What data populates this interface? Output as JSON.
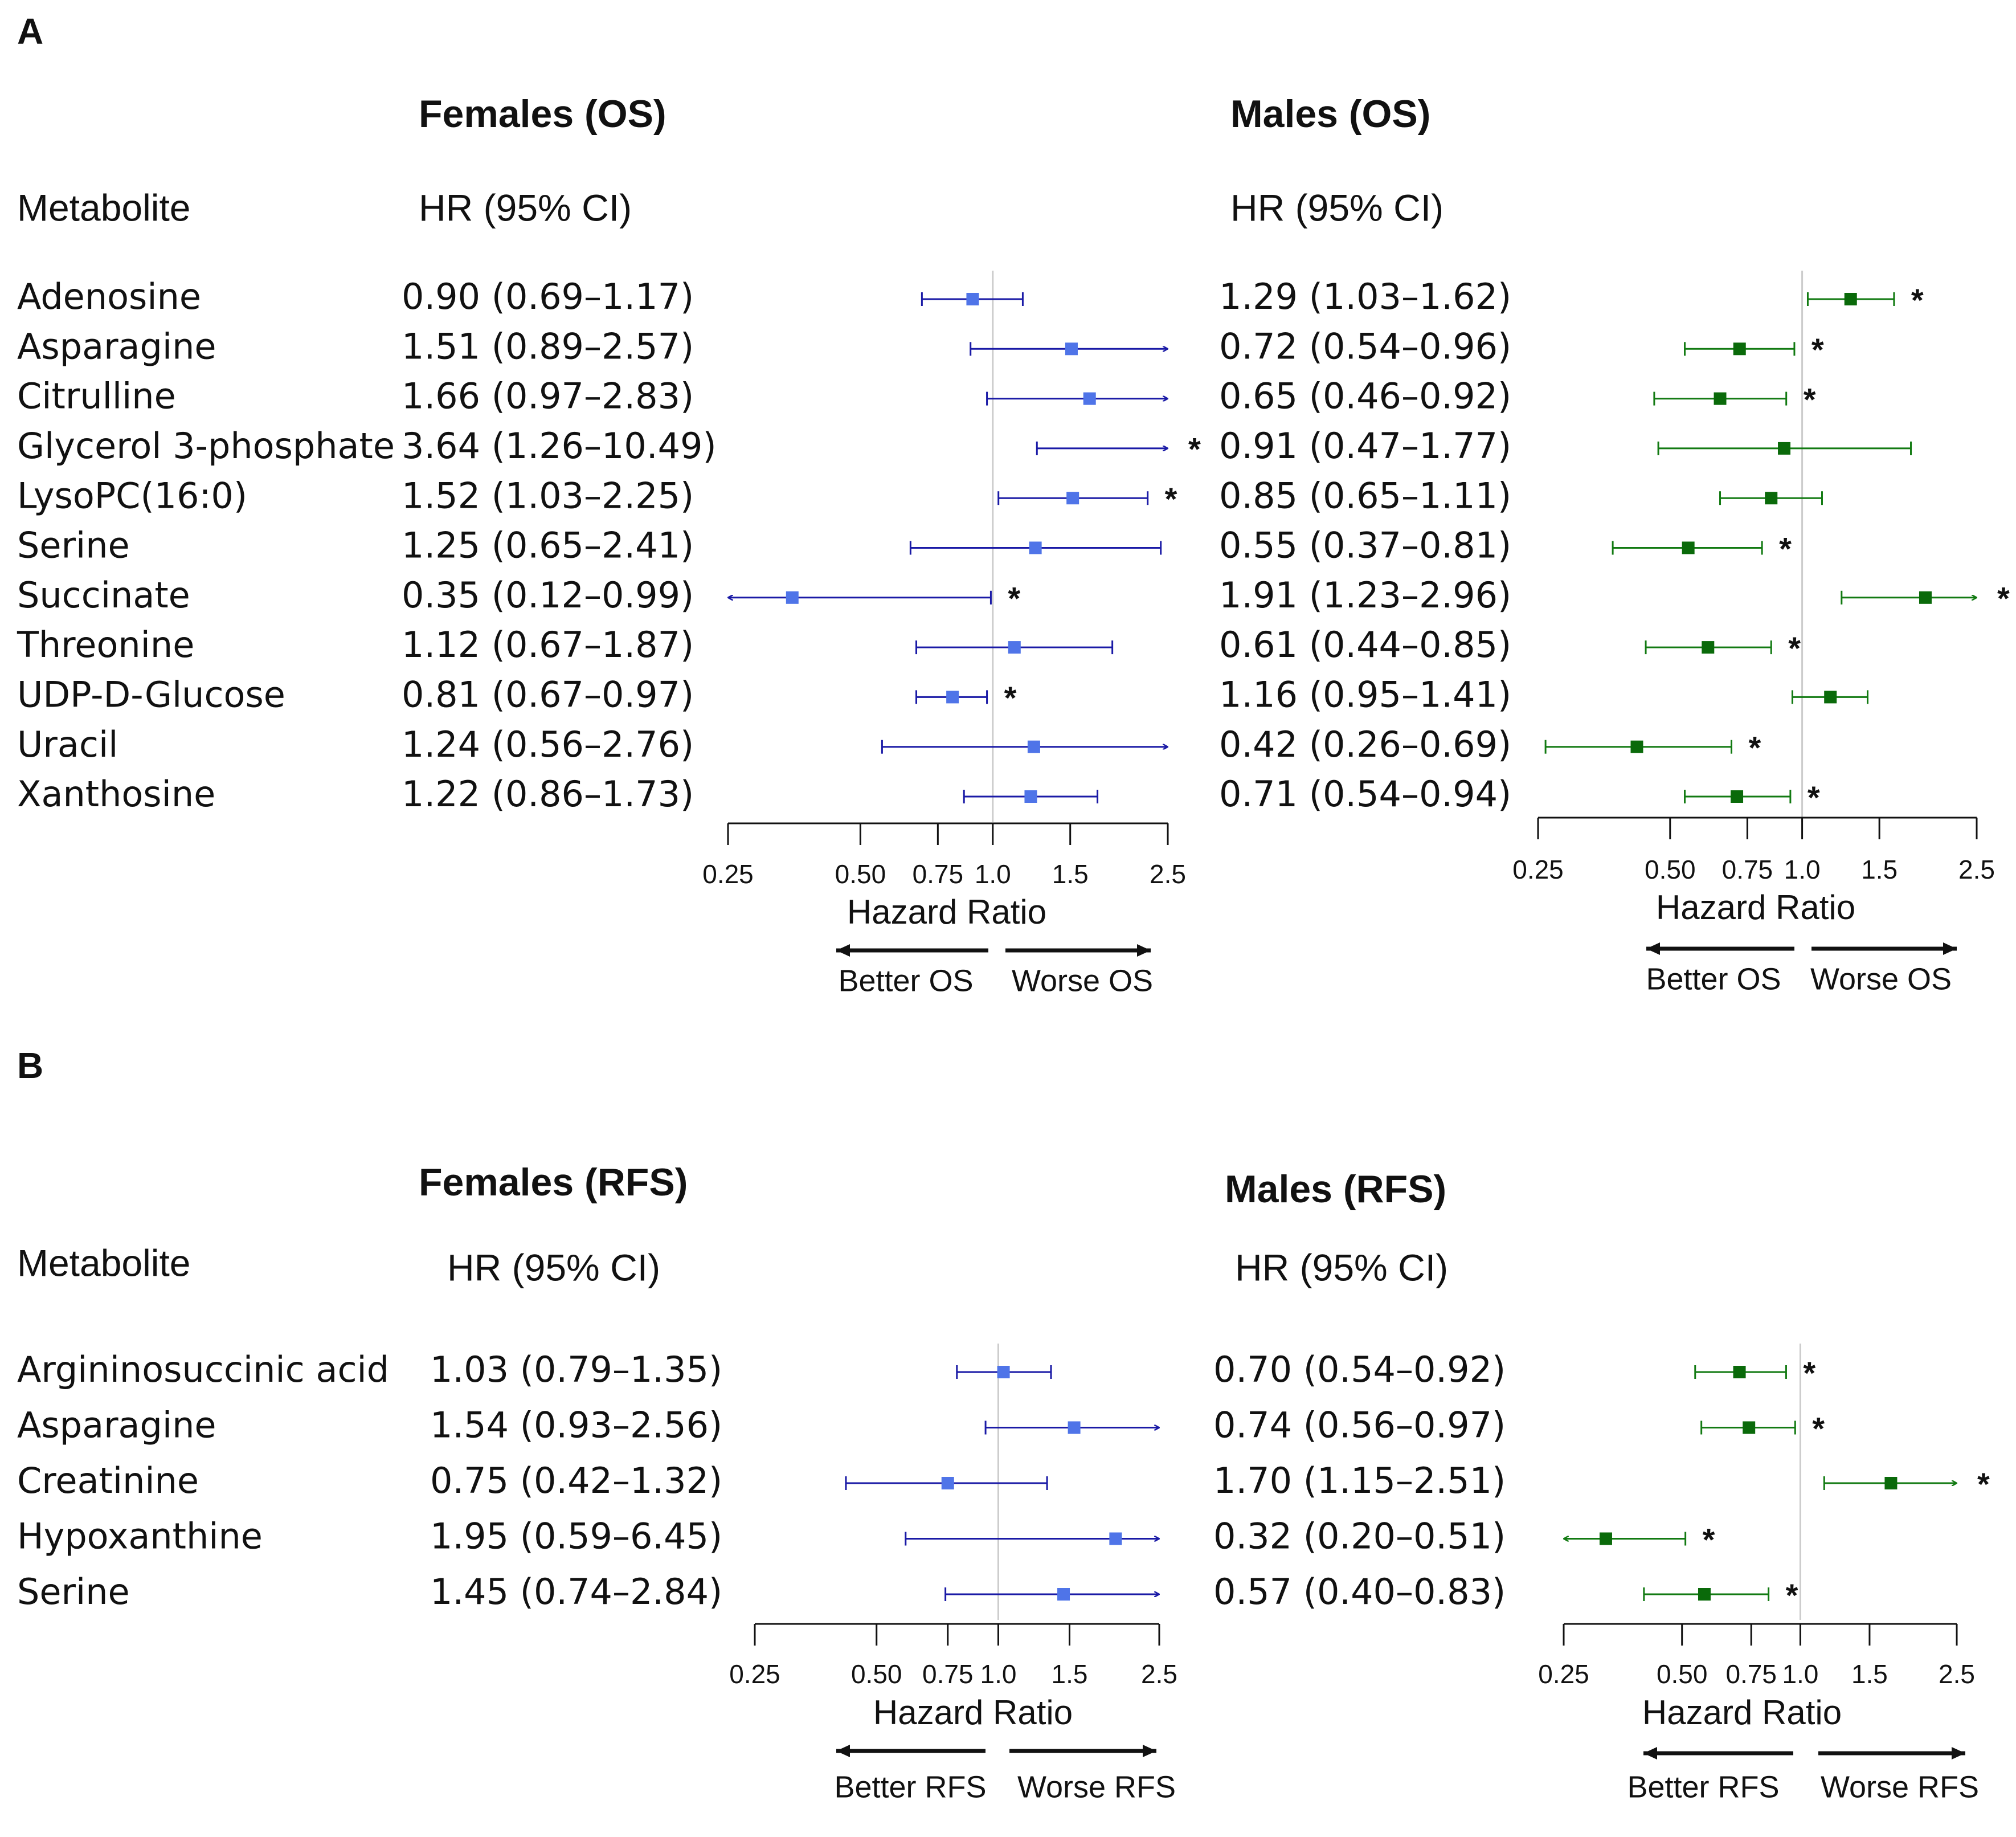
{
  "colors": {
    "female": "#1a1aa6",
    "female_point": "#4f74e8",
    "male": "#127a12",
    "male_point": "#0a6a0a",
    "ref_line": "#cccccc",
    "text": "#111111"
  },
  "panels": [
    {
      "label": "A",
      "metabolite_header": "Metabolite",
      "charts": [
        {
          "key": "female_os",
          "title": "Females (OS)",
          "hr_header": "HR (95% CI)",
          "axis_label": "Hazard Ratio",
          "better_label": "Better OS",
          "worse_label": "Worse OS",
          "ticks": [
            "0.25",
            "0.50",
            "0.75",
            "1.0",
            "1.5",
            "2.5"
          ],
          "rows": [
            {
              "name": "Adenosine",
              "hr_text": "0.90 (0.69–1.17)",
              "sig": ""
            },
            {
              "name": "Asparagine",
              "hr_text": "1.51 (0.89–2.57)",
              "sig": ""
            },
            {
              "name": "Citrulline",
              "hr_text": "1.66 (0.97–2.83)",
              "sig": ""
            },
            {
              "name": "Glycerol 3-phosphate",
              "hr_text": "3.64 (1.26–10.49)",
              "sig": "*"
            },
            {
              "name": "LysoPC(16:0)",
              "hr_text": "1.52 (1.03–2.25)",
              "sig": "*"
            },
            {
              "name": "Serine",
              "hr_text": "1.25 (0.65–2.41)",
              "sig": ""
            },
            {
              "name": "Succinate",
              "hr_text": "0.35 (0.12–0.99)",
              "sig": "*"
            },
            {
              "name": "Threonine",
              "hr_text": "1.12 (0.67–1.87)",
              "sig": ""
            },
            {
              "name": "UDP-D-Glucose",
              "hr_text": "0.81 (0.67–0.97)",
              "sig": "*"
            },
            {
              "name": "Uracil",
              "hr_text": "1.24 (0.56–2.76)",
              "sig": ""
            },
            {
              "name": "Xanthosine",
              "hr_text": "1.22 (0.86–1.73)",
              "sig": ""
            }
          ]
        },
        {
          "key": "male_os",
          "title": "Males (OS)",
          "hr_header": "HR (95% CI)",
          "axis_label": "Hazard Ratio",
          "better_label": "Better OS",
          "worse_label": "Worse OS",
          "ticks": [
            "0.25",
            "0.50",
            "0.75",
            "1.0",
            "1.5",
            "2.5"
          ],
          "rows": [
            {
              "name": "Adenosine",
              "hr_text": "1.29 (1.03–1.62)",
              "sig": "*"
            },
            {
              "name": "Asparagine",
              "hr_text": "0.72 (0.54–0.96)",
              "sig": "*"
            },
            {
              "name": "Citrulline",
              "hr_text": "0.65 (0.46–0.92)",
              "sig": "*"
            },
            {
              "name": "Glycerol 3-phosphate",
              "hr_text": "0.91 (0.47–1.77)",
              "sig": ""
            },
            {
              "name": "LysoPC(16:0)",
              "hr_text": "0.85 (0.65–1.11)",
              "sig": ""
            },
            {
              "name": "Serine",
              "hr_text": "0.55 (0.37–0.81)",
              "sig": "*"
            },
            {
              "name": "Succinate",
              "hr_text": "1.91 (1.23–2.96)",
              "sig": "*"
            },
            {
              "name": "Threonine",
              "hr_text": "0.61 (0.44–0.85)",
              "sig": "*"
            },
            {
              "name": "UDP-D-Glucose",
              "hr_text": "1.16 (0.95–1.41)",
              "sig": ""
            },
            {
              "name": "Uracil",
              "hr_text": "0.42 (0.26–0.69)",
              "sig": "*"
            },
            {
              "name": "Xanthosine",
              "hr_text": "0.71 (0.54–0.94)",
              "sig": "*"
            }
          ]
        }
      ]
    },
    {
      "label": "B",
      "metabolite_header": "Metabolite",
      "charts": [
        {
          "key": "female_rfs",
          "title": "Females (RFS)",
          "hr_header": "HR (95% CI)",
          "axis_label": "Hazard Ratio",
          "better_label": "Better RFS",
          "worse_label": "Worse RFS",
          "ticks": [
            "0.25",
            "0.50",
            "0.75",
            "1.0",
            "1.5",
            "2.5"
          ],
          "rows": [
            {
              "name": "Argininosuccinic acid",
              "hr_text": "1.03 (0.79–1.35)",
              "sig": ""
            },
            {
              "name": "Asparagine",
              "hr_text": "1.54 (0.93–2.56)",
              "sig": ""
            },
            {
              "name": "Creatinine",
              "hr_text": "0.75 (0.42–1.32)",
              "sig": ""
            },
            {
              "name": "Hypoxanthine",
              "hr_text": "1.95 (0.59–6.45)",
              "sig": ""
            },
            {
              "name": "Serine",
              "hr_text": "1.45 (0.74–2.84)",
              "sig": ""
            }
          ]
        },
        {
          "key": "male_rfs",
          "title": "Males (RFS)",
          "hr_header": "HR (95% CI)",
          "axis_label": "Hazard Ratio",
          "better_label": "Better RFS",
          "worse_label": "Worse RFS",
          "ticks": [
            "0.25",
            "0.50",
            "0.75",
            "1.0",
            "1.5",
            "2.5"
          ],
          "rows": [
            {
              "name": "Argininosuccinic acid",
              "hr_text": "0.70 (0.54–0.92)",
              "sig": "*"
            },
            {
              "name": "Asparagine",
              "hr_text": "0.74 (0.56–0.97)",
              "sig": "*"
            },
            {
              "name": "Creatinine",
              "hr_text": "1.70 (1.15–2.51)",
              "sig": "*"
            },
            {
              "name": "Hypoxanthine",
              "hr_text": "0.32 (0.20–0.51)",
              "sig": "*"
            },
            {
              "name": "Serine",
              "hr_text": "0.57 (0.40–0.83)",
              "sig": "*"
            }
          ]
        }
      ]
    }
  ],
  "chart_data": [
    {
      "type": "forest",
      "title": "Females (OS)",
      "xlabel": "Hazard Ratio",
      "x_scale": "log",
      "xlim": [
        0.25,
        2.5
      ],
      "reference": 1.0,
      "categories": [
        "Adenosine",
        "Asparagine",
        "Citrulline",
        "Glycerol 3-phosphate",
        "LysoPC(16:0)",
        "Serine",
        "Succinate",
        "Threonine",
        "UDP-D-Glucose",
        "Uracil",
        "Xanthosine"
      ],
      "hr": [
        0.9,
        1.51,
        1.66,
        3.64,
        1.52,
        1.25,
        0.35,
        1.12,
        0.81,
        1.24,
        1.22
      ],
      "lower": [
        0.69,
        0.89,
        0.97,
        1.26,
        1.03,
        0.65,
        0.12,
        0.67,
        0.67,
        0.56,
        0.86
      ],
      "upper": [
        1.17,
        2.57,
        2.83,
        10.49,
        2.25,
        2.41,
        0.99,
        1.87,
        0.97,
        2.76,
        1.73
      ]
    },
    {
      "type": "forest",
      "title": "Males (OS)",
      "xlabel": "Hazard Ratio",
      "x_scale": "log",
      "xlim": [
        0.25,
        2.5
      ],
      "reference": 1.0,
      "categories": [
        "Adenosine",
        "Asparagine",
        "Citrulline",
        "Glycerol 3-phosphate",
        "LysoPC(16:0)",
        "Serine",
        "Succinate",
        "Threonine",
        "UDP-D-Glucose",
        "Uracil",
        "Xanthosine"
      ],
      "hr": [
        1.29,
        0.72,
        0.65,
        0.91,
        0.85,
        0.55,
        1.91,
        0.61,
        1.16,
        0.42,
        0.71
      ],
      "lower": [
        1.03,
        0.54,
        0.46,
        0.47,
        0.65,
        0.37,
        1.23,
        0.44,
        0.95,
        0.26,
        0.54
      ],
      "upper": [
        1.62,
        0.96,
        0.92,
        1.77,
        1.11,
        0.81,
        2.96,
        0.85,
        1.41,
        0.69,
        0.94
      ]
    },
    {
      "type": "forest",
      "title": "Females (RFS)",
      "xlabel": "Hazard Ratio",
      "x_scale": "log",
      "xlim": [
        0.25,
        2.5
      ],
      "reference": 1.0,
      "categories": [
        "Argininosuccinic acid",
        "Asparagine",
        "Creatinine",
        "Hypoxanthine",
        "Serine"
      ],
      "hr": [
        1.03,
        1.54,
        0.75,
        1.95,
        1.45
      ],
      "lower": [
        0.79,
        0.93,
        0.42,
        0.59,
        0.74
      ],
      "upper": [
        1.35,
        2.56,
        1.32,
        6.45,
        2.84
      ]
    },
    {
      "type": "forest",
      "title": "Males (RFS)",
      "xlabel": "Hazard Ratio",
      "x_scale": "log",
      "xlim": [
        0.25,
        2.5
      ],
      "reference": 1.0,
      "categories": [
        "Argininosuccinic acid",
        "Asparagine",
        "Creatinine",
        "Hypoxanthine",
        "Serine"
      ],
      "hr": [
        0.7,
        0.74,
        1.7,
        0.32,
        0.57
      ],
      "lower": [
        0.54,
        0.56,
        1.15,
        0.2,
        0.4
      ],
      "upper": [
        0.92,
        0.97,
        2.51,
        0.51,
        0.83
      ]
    }
  ]
}
